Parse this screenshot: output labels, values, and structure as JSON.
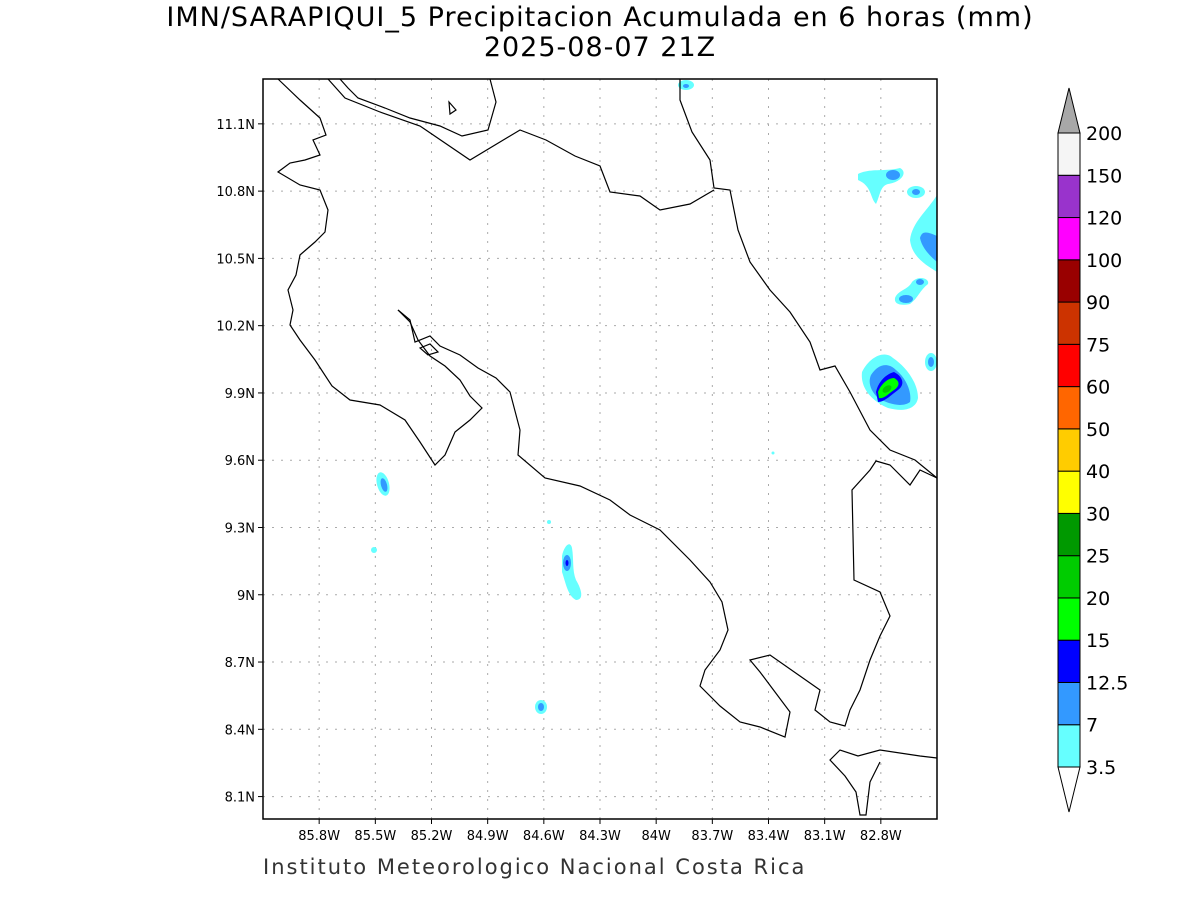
{
  "title": {
    "line1": "IMN/SARAPIQUI_5 Precipitacion Acumulada en 6 horas (mm)",
    "line2": "2025-08-07 21Z"
  },
  "footer": "Instituto Meteorologico Nacional Costa Rica",
  "map": {
    "extent": {
      "lon": [
        -86.1,
        -82.5
      ],
      "lat": [
        8.0,
        11.3
      ]
    },
    "grid": true,
    "lon_ticks": [
      {
        "value": -85.8,
        "label": "85.8W"
      },
      {
        "value": -85.5,
        "label": "85.5W"
      },
      {
        "value": -85.2,
        "label": "85.2W"
      },
      {
        "value": -84.9,
        "label": "84.9W"
      },
      {
        "value": -84.6,
        "label": "84.6W"
      },
      {
        "value": -84.3,
        "label": "84.3W"
      },
      {
        "value": -84.0,
        "label": "84W"
      },
      {
        "value": -83.7,
        "label": "83.7W"
      },
      {
        "value": -83.4,
        "label": "83.4W"
      },
      {
        "value": -83.1,
        "label": "83.1W"
      },
      {
        "value": -82.8,
        "label": "82.8W"
      }
    ],
    "lat_ticks": [
      {
        "value": 11.1,
        "label": "11.1N"
      },
      {
        "value": 10.8,
        "label": "10.8N"
      },
      {
        "value": 10.5,
        "label": "10.5N"
      },
      {
        "value": 10.2,
        "label": "10.2N"
      },
      {
        "value": 9.9,
        "label": "9.9N"
      },
      {
        "value": 9.6,
        "label": "9.6N"
      },
      {
        "value": 9.3,
        "label": "9.3N"
      },
      {
        "value": 9.0,
        "label": "9N"
      },
      {
        "value": 8.7,
        "label": "8.7N"
      },
      {
        "value": 8.4,
        "label": "8.4N"
      },
      {
        "value": 8.1,
        "label": "8.1N"
      }
    ]
  },
  "colorbar": {
    "levels": [
      "3.5",
      "7",
      "12.5",
      "15",
      "20",
      "25",
      "30",
      "40",
      "50",
      "60",
      "75",
      "90",
      "100",
      "120",
      "150",
      "200"
    ],
    "colors": [
      "#66ffff",
      "#3399ff",
      "#0000ff",
      "#00ff00",
      "#00cc00",
      "#009900",
      "#ffff00",
      "#ffcc00",
      "#ff6600",
      "#ff0000",
      "#cc3300",
      "#990000",
      "#ff00ff",
      "#9933cc",
      "#f5f5f5"
    ],
    "over_color": "#a8a8a8",
    "under_color": "#ffffff"
  }
}
